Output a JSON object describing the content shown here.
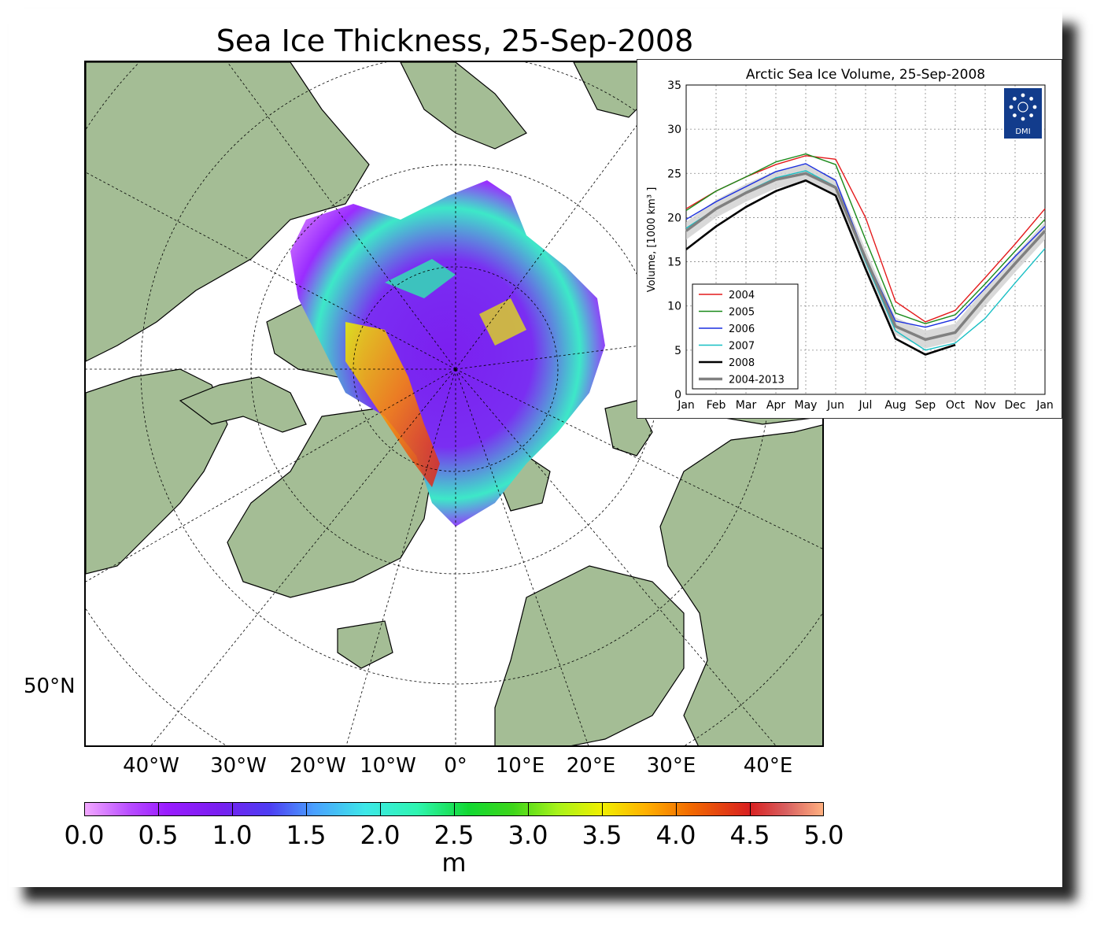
{
  "map": {
    "title": "Sea Ice Thickness, 25-Sep-2008",
    "lon_labels": [
      "40°W",
      "30°W",
      "20°W",
      "10°W",
      "0°",
      "10°E",
      "20°E",
      "30°E",
      "40°E"
    ],
    "lat_label": "50°N",
    "colors": {
      "land": "#a4bd95",
      "ocean": "#ffffff",
      "coast": "#000000"
    },
    "colorbar": {
      "ticks": [
        "0.0",
        "0.5",
        "1.0",
        "1.5",
        "2.0",
        "2.5",
        "3.0",
        "3.5",
        "4.0",
        "4.5",
        "5.0"
      ],
      "unit": "m",
      "min": 0.0,
      "max": 5.0
    }
  },
  "chart_data": {
    "type": "line",
    "title": "Arctic Sea Ice Volume, 25-Sep-2008",
    "ylabel": "Volume, [1000 km³ ]",
    "xlabel": "",
    "ylim": [
      0,
      35
    ],
    "yticks": [
      "0",
      "5",
      "10",
      "15",
      "20",
      "25",
      "30",
      "35"
    ],
    "categories": [
      "Jan",
      "Feb",
      "Mar",
      "Apr",
      "May",
      "Jun",
      "Jul",
      "Aug",
      "Sep",
      "Oct",
      "Nov",
      "Dec",
      "Jan"
    ],
    "grid": true,
    "legend_position": "bottom-left",
    "logo_text": "DMI",
    "series": [
      {
        "name": "2004",
        "color": "#e41a1c",
        "values": [
          21.0,
          23.0,
          24.6,
          26.0,
          27.0,
          26.6,
          20.0,
          10.5,
          8.2,
          9.5,
          13.2,
          17.0,
          21.0
        ]
      },
      {
        "name": "2005",
        "color": "#1a8a1a",
        "values": [
          20.8,
          23.0,
          24.6,
          26.3,
          27.2,
          26.0,
          17.5,
          9.2,
          8.0,
          9.0,
          12.5,
          16.2,
          19.8
        ]
      },
      {
        "name": "2006",
        "color": "#1a2ee0",
        "values": [
          19.8,
          21.8,
          23.5,
          25.2,
          26.1,
          24.2,
          15.5,
          8.3,
          7.6,
          8.5,
          12.0,
          15.6,
          19.0
        ]
      },
      {
        "name": "2007",
        "color": "#17bfc4",
        "values": [
          18.8,
          21.0,
          22.9,
          24.5,
          25.3,
          23.5,
          15.0,
          7.2,
          5.0,
          5.8,
          8.6,
          12.6,
          16.5
        ]
      },
      {
        "name": "2008",
        "color": "#000000",
        "values": [
          16.4,
          19.0,
          21.2,
          23.0,
          24.2,
          22.5,
          14.2,
          6.3,
          4.5,
          5.6,
          null,
          null,
          null
        ]
      },
      {
        "name": "2004-2013",
        "color": "#808080",
        "values": [
          18.5,
          21.0,
          22.8,
          24.3,
          25.0,
          23.4,
          15.4,
          7.7,
          6.2,
          7.0,
          11.0,
          14.8,
          18.5
        ]
      }
    ]
  }
}
